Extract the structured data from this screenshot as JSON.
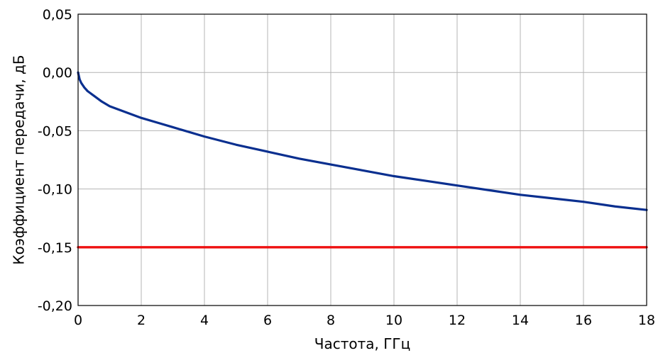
{
  "chart_data": {
    "type": "line",
    "title": "",
    "xlabel": "Частота, ГГц",
    "ylabel": "Коэффициент передачи, дБ",
    "xlim": [
      0,
      18
    ],
    "ylim": [
      -0.2,
      0.05
    ],
    "x_ticks": [
      0,
      2,
      4,
      6,
      8,
      10,
      12,
      14,
      16,
      18
    ],
    "y_ticks": [
      0.05,
      0.0,
      -0.05,
      -0.1,
      -0.15,
      -0.2
    ],
    "x_tick_labels": [
      "0",
      "2",
      "4",
      "6",
      "8",
      "10",
      "12",
      "14",
      "16",
      "18"
    ],
    "y_tick_labels": [
      "0,05",
      "0,00",
      "-0,05",
      "-0,10",
      "-0,15",
      "-0,20"
    ],
    "grid": true,
    "series": [
      {
        "color": "#0a2f8f",
        "x": [
          0,
          0.05,
          0.1,
          0.2,
          0.3,
          0.5,
          0.75,
          1,
          1.5,
          2,
          2.5,
          3,
          4,
          5,
          6,
          7,
          8,
          9,
          10,
          11,
          12,
          13,
          14,
          15,
          16,
          17,
          18
        ],
        "y": [
          0.0,
          -0.006,
          -0.009,
          -0.013,
          -0.016,
          -0.02,
          -0.025,
          -0.029,
          -0.034,
          -0.039,
          -0.043,
          -0.047,
          -0.055,
          -0.062,
          -0.068,
          -0.074,
          -0.079,
          -0.084,
          -0.089,
          -0.093,
          -0.097,
          -0.101,
          -0.105,
          -0.108,
          -0.111,
          -0.115,
          -0.118
        ]
      },
      {
        "color": "#ee1111",
        "x": [
          0,
          18
        ],
        "y": [
          -0.15,
          -0.15
        ]
      }
    ]
  }
}
